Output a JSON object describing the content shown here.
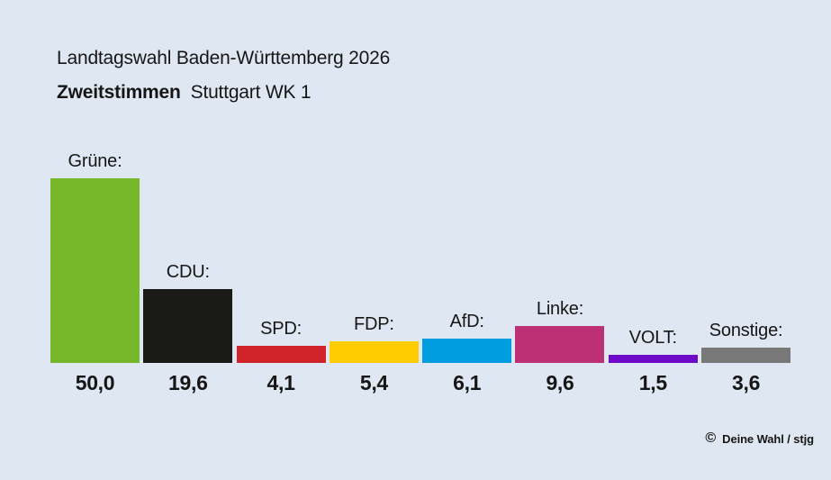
{
  "header": {
    "title": "Landtagswahl Baden-Württemberg 2026",
    "subtitle_bold": "Zweitstimmen",
    "subtitle": "Stuttgart WK 1"
  },
  "footer": {
    "copyright_symbol": "©",
    "credit": "Deine Wahl / stjg"
  },
  "colors": {
    "background": "#dfe8f2",
    "text": "#161616"
  },
  "chart_data": {
    "type": "bar",
    "title": "Landtagswahl Baden-Württemberg 2026",
    "subtitle": "Zweitstimmen Stuttgart WK 1",
    "unit": "percent",
    "decimal_separator": ",",
    "grid": false,
    "legend": false,
    "axes_shown": false,
    "category_labels_position": "above-bars",
    "value_labels_position": "below-bars",
    "ylim": [
      0,
      50
    ],
    "categories": [
      "Grüne",
      "CDU",
      "SPD",
      "FDP",
      "AfD",
      "Linke",
      "VOLT",
      "Sonstige"
    ],
    "values": [
      50.0,
      19.6,
      4.1,
      5.4,
      6.1,
      9.6,
      1.5,
      3.6
    ],
    "bars": [
      {
        "party": "Grüne",
        "label": "Grüne:",
        "value": 50.0,
        "value_display": "50,0",
        "color": "#76b82a"
      },
      {
        "party": "CDU",
        "label": "CDU:",
        "value": 19.6,
        "value_display": "19,6",
        "color": "#1a1a18"
      },
      {
        "party": "SPD",
        "label": "SPD:",
        "value": 4.1,
        "value_display": "4,1",
        "color": "#d1232a"
      },
      {
        "party": "FDP",
        "label": "FDP:",
        "value": 5.4,
        "value_display": "5,4",
        "color": "#ffcc00"
      },
      {
        "party": "AfD",
        "label": "AfD:",
        "value": 6.1,
        "value_display": "6,1",
        "color": "#009ee0"
      },
      {
        "party": "Linke",
        "label": "Linke:",
        "value": 9.6,
        "value_display": "9,6",
        "color": "#be3075"
      },
      {
        "party": "VOLT",
        "label": "VOLT:",
        "value": 1.5,
        "value_display": "1,5",
        "color": "#6c0ac8"
      },
      {
        "party": "Sonstige",
        "label": "Sonstige:",
        "value": 3.6,
        "value_display": "3,6",
        "color": "#787878"
      }
    ]
  }
}
